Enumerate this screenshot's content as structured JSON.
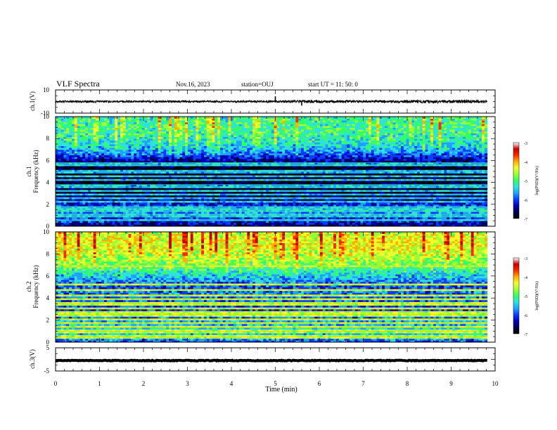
{
  "header": {
    "title": "VLF Spectra",
    "date": "Nov.16, 2023",
    "station": "station=OUJ",
    "start": "start  UT =  11: 50: 0"
  },
  "colors": {
    "background": "#ffffff",
    "axis": "#000000",
    "trace": "#000000",
    "colormap": [
      "#000000",
      "#00004a",
      "#0000b8",
      "#0a3cff",
      "#1fa0ff",
      "#2fe0e0",
      "#33ff66",
      "#9dff33",
      "#f0ff2a",
      "#ffb000",
      "#ff2a00",
      "#c80000",
      "#ffffff"
    ]
  },
  "chart_data": [
    {
      "type": "line",
      "panel": "ch1-waveform",
      "ylabel": "ch.1(V)",
      "xlim": [
        0,
        10
      ],
      "ylim": [
        -10,
        10
      ],
      "yticks": [
        "10",
        "-10"
      ],
      "data_xmax": 9.82,
      "baseline": 0,
      "envelope": [
        {
          "x": 0.0,
          "amp": 0.9
        },
        {
          "x": 1.5,
          "amp": 0.9
        },
        {
          "x": 2.6,
          "amp": 1.0
        },
        {
          "x": 4.0,
          "amp": 0.8
        },
        {
          "x": 5.0,
          "amp": 1.1
        },
        {
          "x": 5.9,
          "amp": 1.3
        },
        {
          "x": 7.2,
          "amp": 1.0
        },
        {
          "x": 8.3,
          "amp": 1.4
        },
        {
          "x": 9.4,
          "amp": 1.5
        },
        {
          "x": 9.82,
          "amp": 1.2
        }
      ],
      "spikes": [
        {
          "x": 5.0,
          "y": 4.5
        },
        {
          "x": 5.6,
          "y": -3.5
        }
      ]
    },
    {
      "type": "heatmap",
      "panel": "ch1-spectrogram",
      "ylabel_top": "ch.1",
      "ylabel": "Frequency (kHz)",
      "xlim": [
        0,
        10
      ],
      "ylim": [
        0,
        10
      ],
      "yticks": [
        "0",
        "2",
        "4",
        "6",
        "8",
        "10"
      ],
      "data_xmax": 9.82,
      "colorbar": {
        "label": "log(PSD)(V²/Hz)",
        "range": [
          -7,
          -3
        ],
        "ticks": [
          "-3",
          "-4",
          "-5",
          "-6",
          "-7"
        ]
      },
      "profile_freq_khz": [
        0,
        0.5,
        1.0,
        1.5,
        2.0,
        2.5,
        3.0,
        3.5,
        4.0,
        4.5,
        5.0,
        5.5,
        6.0,
        6.5,
        7.0,
        7.5,
        8.0,
        9.0,
        10.0
      ],
      "profile_log_psd": [
        -6.4,
        -6.0,
        -5.7,
        -5.3,
        -6.0,
        -6.3,
        -6.6,
        -6.7,
        -6.6,
        -6.7,
        -6.9,
        -6.6,
        -6.3,
        -5.8,
        -5.4,
        -5.2,
        -5.0,
        -4.9,
        -5.0
      ],
      "tones_khz": [
        0.55,
        0.9,
        1.05,
        1.35,
        1.55,
        1.8,
        2.3,
        2.6,
        2.9,
        3.2,
        3.55,
        3.8,
        4.2,
        4.6,
        5.0,
        5.55,
        5.8
      ],
      "tone_log_psd": -5.4
    },
    {
      "type": "heatmap",
      "panel": "ch2-spectrogram",
      "ylabel_top": "ch.2",
      "ylabel": "Frequency (kHz)",
      "xlim": [
        0,
        10
      ],
      "ylim": [
        0,
        10
      ],
      "yticks": [
        "0",
        "2",
        "4",
        "6",
        "8",
        "10"
      ],
      "data_xmax": 9.82,
      "colorbar": {
        "label": "log(PSD)(V²/Hz)",
        "range": [
          -7,
          -3
        ],
        "ticks": [
          "-3",
          "-4",
          "-5",
          "-6",
          "-7"
        ]
      },
      "profile_freq_khz": [
        0,
        0.5,
        1.0,
        1.5,
        2.0,
        2.5,
        3.0,
        3.5,
        4.0,
        4.5,
        5.0,
        5.5,
        6.0,
        6.5,
        7.0,
        7.5,
        8.0,
        9.0,
        10.0
      ],
      "profile_log_psd": [
        -5.8,
        -5.4,
        -5.1,
        -5.3,
        -5.5,
        -5.8,
        -5.9,
        -5.8,
        -5.7,
        -5.6,
        -5.8,
        -5.6,
        -5.3,
        -5.0,
        -4.7,
        -4.5,
        -4.3,
        -4.2,
        -4.3
      ],
      "tones_khz": [
        0.5,
        1.0,
        1.35,
        1.7,
        2.1,
        2.5,
        2.8,
        3.1,
        3.5,
        3.9,
        4.3,
        4.8,
        5.3,
        6.9
      ],
      "tone_log_psd": -4.4
    },
    {
      "type": "line",
      "panel": "ch3-waveform",
      "ylabel": "ch.3(V)",
      "xlabel": "Time (min)",
      "xlim": [
        0,
        10
      ],
      "ylim": [
        -5,
        5
      ],
      "yticks": [
        "5",
        "0",
        "-5"
      ],
      "xticks": [
        "0",
        "1",
        "2",
        "3",
        "4",
        "5",
        "6",
        "7",
        "8",
        "9",
        "10"
      ],
      "data_xmax": 9.82,
      "baseline": -0.5,
      "amp": 0.15
    }
  ]
}
